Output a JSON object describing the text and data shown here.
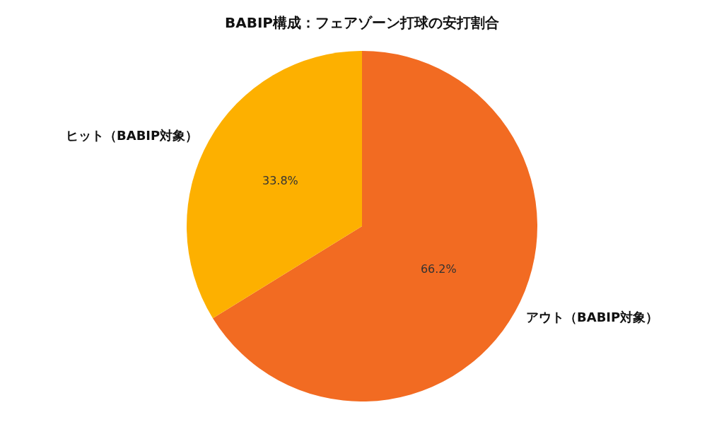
{
  "chart_data": {
    "type": "pie",
    "title": "BABIP構成：フェアゾーン打球の安打割合",
    "categories": [
      "アウト（BABIP対象）",
      "ヒット（BABIP対象）"
    ],
    "values": [
      66.2,
      33.8
    ],
    "value_labels": [
      "66.2%",
      "33.8%"
    ],
    "colors": [
      "#f26b22",
      "#fdb000"
    ],
    "legend": false
  }
}
